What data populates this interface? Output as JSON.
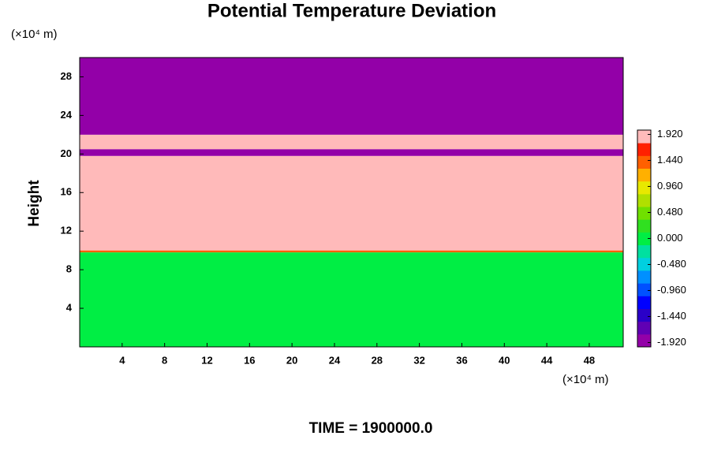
{
  "chart_data": {
    "type": "contour",
    "title": "Potential Temperature Deviation",
    "ylabel": "Height",
    "yunit": "(×10⁴ m)",
    "xunit": "(×10⁴ m)",
    "annotation": "TIME = 1900000.0",
    "xlim": [
      0,
      51.2
    ],
    "ylim": [
      0,
      30
    ],
    "xticks": [
      4,
      8,
      12,
      16,
      20,
      24,
      28,
      32,
      36,
      40,
      44,
      48
    ],
    "yticks": [
      4,
      8,
      12,
      16,
      20,
      24,
      28
    ],
    "layers": [
      {
        "y": [
          0,
          9.8
        ],
        "value": 0.06
      },
      {
        "y": [
          9.8,
          10.0
        ],
        "value": 1.5
      },
      {
        "y": [
          10.0,
          19.8
        ],
        "value": 2.0
      },
      {
        "y": [
          19.8,
          20.5
        ],
        "value": -2.0
      },
      {
        "y": [
          20.5,
          22.0
        ],
        "value": 2.0
      },
      {
        "y": [
          22.0,
          30
        ],
        "value": -2.0
      }
    ],
    "clim": [
      -2.0,
      2.0
    ],
    "colormap": [
      "#9300a8",
      "#6000b4",
      "#2a00c8",
      "#0000ff",
      "#0050ff",
      "#0090ff",
      "#00d0e0",
      "#00e0a0",
      "#00ee44",
      "#30e020",
      "#70e000",
      "#b0e000",
      "#e8e800",
      "#ffb000",
      "#ff6000",
      "#ff2000",
      "#ffbaba"
    ],
    "cticks": [
      {
        "value": 1.92,
        "label": "1.920"
      },
      {
        "value": 1.44,
        "label": "1.440"
      },
      {
        "value": 0.96,
        "label": "0.960"
      },
      {
        "value": 0.48,
        "label": "0.480"
      },
      {
        "value": 0.0,
        "label": "0.000"
      },
      {
        "value": -0.48,
        "label": "-0.480"
      },
      {
        "value": -0.96,
        "label": "-0.960"
      },
      {
        "value": -1.44,
        "label": "-1.440"
      },
      {
        "value": -1.92,
        "label": "-1.920"
      }
    ]
  }
}
